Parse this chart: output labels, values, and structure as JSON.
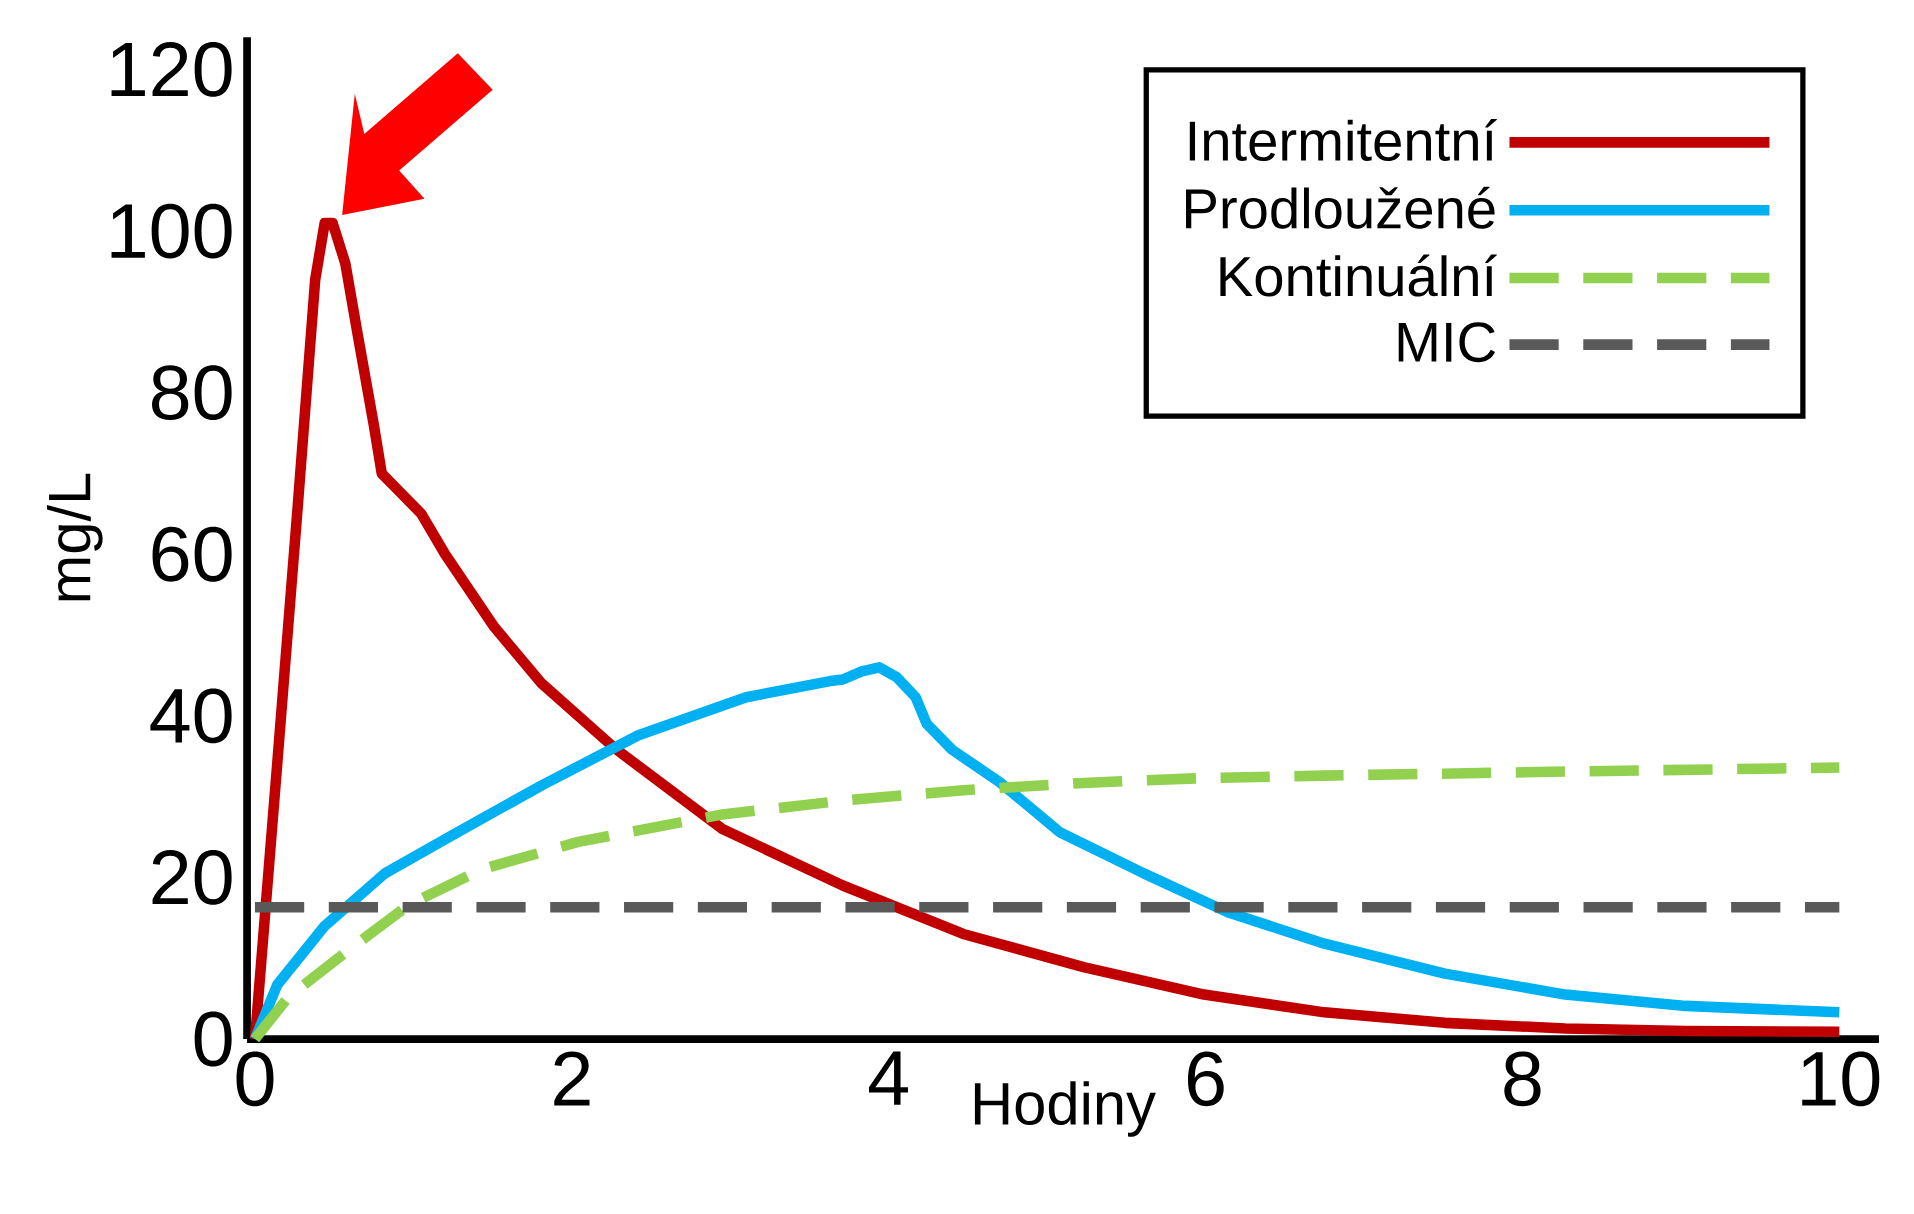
{
  "chart_data": {
    "type": "line",
    "xlabel": "Hodiny",
    "ylabel": "mg/L",
    "xlim": [
      -0.05,
      10.25
    ],
    "ylim": [
      0,
      124
    ],
    "xticks": [
      0,
      2,
      4,
      6,
      8,
      10
    ],
    "yticks": [
      0,
      20,
      40,
      60,
      80,
      100,
      120
    ],
    "legend": "top right",
    "series": [
      {
        "name": "Intermitentní",
        "color": "#c00000",
        "line_style": "solid",
        "x": [
          0,
          0.14,
          0.27,
          0.38,
          0.44,
          0.49,
          0.57,
          0.65,
          0.75,
          0.8,
          0.9,
          1.05,
          1.2,
          1.51,
          1.81,
          2.27,
          2.95,
          3.71,
          4.47,
          5.23,
          5.99,
          6.75,
          7.51,
          8.27,
          9.03,
          10
        ],
        "values": [
          0,
          34,
          66,
          94,
          101,
          101,
          96,
          87,
          76,
          70,
          68,
          65,
          60,
          51,
          44,
          36,
          26,
          19,
          13,
          8.9,
          5.5,
          3.3,
          2.0,
          1.3,
          1.0,
          0.9
        ]
      },
      {
        "name": "Prodloužené",
        "color": "#00b0f0",
        "line_style": "solid",
        "x": [
          0,
          0.14,
          0.44,
          0.82,
          1.28,
          1.81,
          2.42,
          3.1,
          3.63,
          3.71,
          3.83,
          3.94,
          4.05,
          4.17,
          4.24,
          4.4,
          4.7,
          5.08,
          5.61,
          6.14,
          6.75,
          7.51,
          8.27,
          9.03,
          10
        ],
        "values": [
          0,
          6.7,
          14,
          20.5,
          25.6,
          31.4,
          37.6,
          42.3,
          44.3,
          44.5,
          45.5,
          46,
          44.8,
          42.3,
          39,
          35.8,
          31.8,
          25.6,
          20.5,
          15.7,
          11.8,
          8.1,
          5.5,
          4.1,
          3.3
        ]
      },
      {
        "name": "Kontinuální",
        "color": "#92d050",
        "line_style": "dashed",
        "x": [
          0,
          0.21,
          0.59,
          0.97,
          1.43,
          2.04,
          2.95,
          3.71,
          4.47,
          5.23,
          5.99,
          6.75,
          8.27,
          10
        ],
        "values": [
          0,
          5.2,
          11,
          16.6,
          21,
          24.4,
          27.8,
          29.5,
          30.8,
          31.7,
          32.3,
          32.6,
          33.1,
          33.6
        ]
      },
      {
        "name": "MIC",
        "color": "#595959",
        "line_style": "dashed",
        "x": [
          0,
          10
        ],
        "values": [
          16.3,
          16.3
        ]
      }
    ]
  }
}
